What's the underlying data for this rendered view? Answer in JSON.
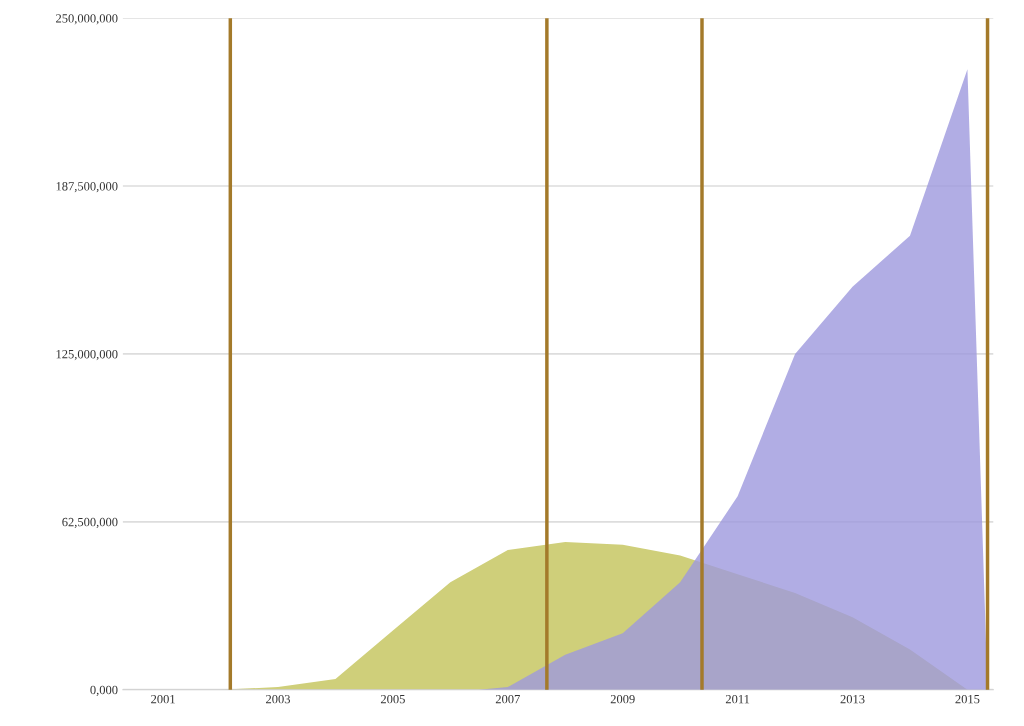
{
  "chart_data": {
    "type": "area",
    "series": [
      {
        "color": "#cfcf7a",
        "x": [
          2001,
          2002,
          2003,
          2004,
          2005,
          2006,
          2007,
          2008,
          2009,
          2010,
          2011,
          2012,
          2013,
          2014,
          2015
        ],
        "values": [
          0,
          0,
          1000000,
          4000000,
          22000000,
          40000000,
          52000000,
          55000000,
          54000000,
          50000000,
          43000000,
          36000000,
          27000000,
          15000000,
          0
        ]
      },
      {
        "color": "#9d99dd",
        "x": [
          2006.5,
          2007,
          2008,
          2009,
          2010,
          2011,
          2012,
          2013,
          2014,
          2015,
          2015.35
        ],
        "values": [
          0,
          1000000,
          13000000,
          21000000,
          40000000,
          72000000,
          125000000,
          150000000,
          169000000,
          231000000,
          0
        ]
      }
    ],
    "xlim": [
      2000.3,
      2015.45
    ],
    "xticks": [
      2001,
      2003,
      2005,
      2007,
      2009,
      2011,
      2013,
      2015
    ],
    "ylim": [
      0,
      250000000
    ],
    "yticks": [
      {
        "value": 0,
        "label": "0,000"
      },
      {
        "value": 62500000,
        "label": "62,500,000"
      },
      {
        "value": 125000000,
        "label": "125,000,000"
      },
      {
        "value": 187500000,
        "label": "187,500,000"
      },
      {
        "value": 250000000,
        "label": "250,000,000"
      }
    ],
    "grid": "y",
    "ref_lines": [
      {
        "axis": "x",
        "value": 2002.17,
        "color": "#a47a2a"
      },
      {
        "axis": "x",
        "value": 2007.68,
        "color": "#a47a2a"
      },
      {
        "axis": "x",
        "value": 2010.38,
        "color": "#a47a2a"
      },
      {
        "axis": "x",
        "value": 2015.35,
        "color": "#a47a2a"
      }
    ]
  }
}
